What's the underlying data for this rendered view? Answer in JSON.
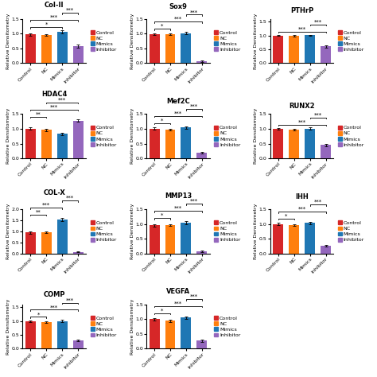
{
  "chart_data": [
    {
      "type": "bar",
      "title": "Col-II",
      "y_label": "Relative Densitometry",
      "categories": [
        "Control",
        "NC",
        "Mimics",
        "Inhibitor"
      ],
      "colors": [
        "#d62728",
        "#ff7f0e",
        "#1f77b4",
        "#9467bd"
      ],
      "values": [
        0.97,
        0.96,
        1.07,
        0.57
      ],
      "errors": [
        0.04,
        0.03,
        0.05,
        0.06
      ],
      "ylim": [
        0.0,
        1.5
      ],
      "yticks": [
        0.0,
        0.5,
        1.0,
        1.5
      ],
      "legend": "right",
      "annotations": [
        {
          "from": "Control",
          "to": "Mimics",
          "text": "*"
        },
        {
          "from": "Control",
          "to": "Inhibitor",
          "text": "***"
        },
        {
          "from": "Mimics",
          "to": "Inhibitor",
          "text": "***"
        }
      ]
    },
    {
      "type": "bar",
      "title": "Sox9",
      "y_label": "Relative Densitometry",
      "categories": [
        "Control",
        "NC",
        "Mimics",
        "Inhibitor"
      ],
      "colors": [
        "#d62728",
        "#ff7f0e",
        "#1f77b4",
        "#9467bd"
      ],
      "values": [
        0.97,
        0.97,
        1.02,
        0.07
      ],
      "errors": [
        0.03,
        0.03,
        0.04,
        0.02
      ],
      "ylim": [
        0.0,
        1.5
      ],
      "yticks": [
        0.0,
        0.5,
        1.0,
        1.5
      ],
      "legend": "right",
      "annotations": [
        {
          "from": "Control",
          "to": "NC",
          "text": "*"
        },
        {
          "from": "Control",
          "to": "Inhibitor",
          "text": "***"
        },
        {
          "from": "Mimics",
          "to": "Inhibitor",
          "text": "***"
        }
      ]
    },
    {
      "type": "bar",
      "title": "PTHrP",
      "y_label": "Relative Densitometry",
      "categories": [
        "Control",
        "NC",
        "Mimics",
        "Inhibitor"
      ],
      "colors": [
        "#d62728",
        "#ff7f0e",
        "#1f77b4",
        "#9467bd"
      ],
      "values": [
        1.0,
        0.99,
        1.01,
        0.6
      ],
      "errors": [
        0.02,
        0.02,
        0.02,
        0.04
      ],
      "ylim": [
        0.0,
        1.6
      ],
      "yticks": [
        0.0,
        0.5,
        1.0,
        1.5
      ],
      "legend": "right",
      "annotations": [
        {
          "from": "Control",
          "to": "Inhibitor",
          "text": "***"
        },
        {
          "from": "Mimics",
          "to": "Inhibitor",
          "text": "***"
        }
      ]
    },
    {
      "type": "bar",
      "title": "HDAC4",
      "y_label": "Relative Densitometry",
      "categories": [
        "Control",
        "NC",
        "Mimics",
        "Inhibitor"
      ],
      "colors": [
        "#d62728",
        "#ff7f0e",
        "#1f77b4",
        "#9467bd"
      ],
      "values": [
        1.0,
        0.97,
        0.83,
        1.28
      ],
      "errors": [
        0.04,
        0.04,
        0.04,
        0.03
      ],
      "ylim": [
        0.0,
        1.5
      ],
      "yticks": [
        0.0,
        0.5,
        1.0,
        1.5
      ],
      "legend": "right",
      "annotations": [
        {
          "from": "Control",
          "to": "NC",
          "text": "**"
        },
        {
          "from": "Control",
          "to": "Inhibitor",
          "text": "***"
        },
        {
          "from": "NC",
          "to": "Inhibitor",
          "text": "***"
        }
      ]
    },
    {
      "type": "bar",
      "title": "Mef2C",
      "y_label": "Relative Densitometry",
      "categories": [
        "Control",
        "NC",
        "Mimics",
        "Inhibitor"
      ],
      "colors": [
        "#d62728",
        "#ff7f0e",
        "#1f77b4",
        "#9467bd"
      ],
      "values": [
        1.0,
        0.97,
        1.05,
        0.2
      ],
      "errors": [
        0.04,
        0.03,
        0.04,
        0.03
      ],
      "ylim": [
        0.0,
        1.5
      ],
      "yticks": [
        0.0,
        0.5,
        1.0,
        1.5
      ],
      "legend": "right",
      "annotations": [
        {
          "from": "Control",
          "to": "NC",
          "text": "*"
        },
        {
          "from": "Control",
          "to": "Inhibitor",
          "text": "***"
        },
        {
          "from": "Mimics",
          "to": "Inhibitor",
          "text": "***"
        }
      ]
    },
    {
      "type": "bar",
      "title": "RUNX2",
      "y_label": "Relative Densitometry",
      "categories": [
        "Control",
        "NC",
        "Mimics",
        "Inhibitor"
      ],
      "colors": [
        "#d62728",
        "#ff7f0e",
        "#1f77b4",
        "#9467bd"
      ],
      "values": [
        1.0,
        0.98,
        1.0,
        0.45
      ],
      "errors": [
        0.03,
        0.03,
        0.04,
        0.05
      ],
      "ylim": [
        0.0,
        1.5
      ],
      "yticks": [
        0.0,
        0.5,
        1.0,
        1.5
      ],
      "legend": "right",
      "annotations": [
        {
          "from": "Control",
          "to": "Inhibitor",
          "text": "***"
        },
        {
          "from": "Mimics",
          "to": "Inhibitor",
          "text": "***"
        }
      ]
    },
    {
      "type": "bar",
      "title": "COL-X",
      "y_label": "Relative Densitometry",
      "categories": [
        "Control",
        "NC",
        "Mimics",
        "Inhibitor"
      ],
      "colors": [
        "#d62728",
        "#ff7f0e",
        "#1f77b4",
        "#9467bd"
      ],
      "values": [
        0.95,
        0.97,
        1.55,
        0.07
      ],
      "errors": [
        0.05,
        0.04,
        0.07,
        0.02
      ],
      "ylim": [
        0.0,
        2.0
      ],
      "yticks": [
        0.0,
        0.5,
        1.0,
        1.5,
        2.0
      ],
      "legend": "right",
      "annotations": [
        {
          "from": "Control",
          "to": "NC",
          "text": "**"
        },
        {
          "from": "Control",
          "to": "Mimics",
          "text": "***"
        },
        {
          "from": "Mimics",
          "to": "Inhibitor",
          "text": "***"
        }
      ]
    },
    {
      "type": "bar",
      "title": "MMP13",
      "y_label": "Relative Densitometry",
      "categories": [
        "Control",
        "NC",
        "Mimics",
        "Inhibitor"
      ],
      "colors": [
        "#d62728",
        "#ff7f0e",
        "#1f77b4",
        "#9467bd"
      ],
      "values": [
        0.95,
        0.96,
        1.05,
        0.08
      ],
      "errors": [
        0.04,
        0.03,
        0.05,
        0.02
      ],
      "ylim": [
        0.0,
        1.5
      ],
      "yticks": [
        0.0,
        0.5,
        1.0,
        1.5
      ],
      "legend": "right",
      "annotations": [
        {
          "from": "Control",
          "to": "NC",
          "text": "*"
        },
        {
          "from": "Control",
          "to": "Inhibitor",
          "text": "***"
        },
        {
          "from": "Mimics",
          "to": "Inhibitor",
          "text": "***"
        }
      ]
    },
    {
      "type": "bar",
      "title": "IHH",
      "y_label": "Relative Densitometry",
      "categories": [
        "Control",
        "NC",
        "Mimics",
        "Inhibitor"
      ],
      "colors": [
        "#d62728",
        "#ff7f0e",
        "#1f77b4",
        "#9467bd"
      ],
      "values": [
        1.0,
        0.97,
        1.04,
        0.27
      ],
      "errors": [
        0.04,
        0.03,
        0.04,
        0.03
      ],
      "ylim": [
        0.0,
        1.5
      ],
      "yticks": [
        0.0,
        0.5,
        1.0,
        1.5
      ],
      "legend": "right",
      "annotations": [
        {
          "from": "Control",
          "to": "NC",
          "text": "*"
        },
        {
          "from": "Control",
          "to": "Inhibitor",
          "text": "***"
        },
        {
          "from": "Mimics",
          "to": "Inhibitor",
          "text": "***"
        }
      ]
    },
    {
      "type": "bar",
      "title": "COMP",
      "y_label": "Relative Densitometry",
      "categories": [
        "Control",
        "NC",
        "Mimics",
        "Inhibitor"
      ],
      "colors": [
        "#d62728",
        "#ff7f0e",
        "#1f77b4",
        "#9467bd"
      ],
      "values": [
        1.0,
        0.97,
        1.0,
        0.3
      ],
      "errors": [
        0.03,
        0.03,
        0.04,
        0.03
      ],
      "ylim": [
        0.0,
        1.6
      ],
      "yticks": [
        0.0,
        0.5,
        1.0,
        1.5
      ],
      "legend": "right",
      "annotations": [
        {
          "from": "Control",
          "to": "NC",
          "text": "*"
        },
        {
          "from": "Control",
          "to": "Inhibitor",
          "text": "***"
        },
        {
          "from": "Mimics",
          "to": "Inhibitor",
          "text": "***"
        }
      ]
    },
    {
      "type": "bar",
      "title": "VEGFA",
      "y_label": "Relative Densitometry",
      "categories": [
        "Control",
        "NC",
        "Mimics",
        "Inhibitor"
      ],
      "colors": [
        "#d62728",
        "#ff7f0e",
        "#1f77b4",
        "#9467bd"
      ],
      "values": [
        1.0,
        0.95,
        1.05,
        0.27
      ],
      "errors": [
        0.04,
        0.04,
        0.05,
        0.04
      ],
      "ylim": [
        0.0,
        1.5
      ],
      "yticks": [
        0.0,
        0.5,
        1.0,
        1.5
      ],
      "legend": "right",
      "annotations": [
        {
          "from": "Control",
          "to": "NC",
          "text": "*"
        },
        {
          "from": "Control",
          "to": "Inhibitor",
          "text": "***"
        },
        {
          "from": "Mimics",
          "to": "Inhibitor",
          "text": "***"
        }
      ]
    }
  ]
}
